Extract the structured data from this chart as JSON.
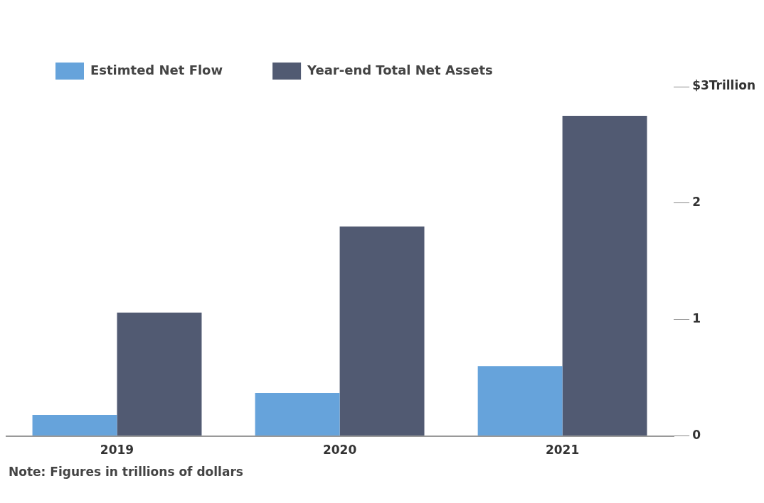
{
  "chart_data": {
    "type": "bar",
    "categories": [
      "2019",
      "2020",
      "2021"
    ],
    "series": [
      {
        "name": "Estimted Net Flow",
        "color": "#66a3db",
        "values": [
          0.18,
          0.37,
          0.6
        ]
      },
      {
        "name": "Year-end Total Net Assets",
        "color": "#515a72",
        "values": [
          1.06,
          1.8,
          2.75
        ]
      }
    ],
    "ylim": [
      0,
      3
    ],
    "yticks": [
      0,
      1,
      2,
      {
        "value": 3,
        "label": "$3Trillion"
      }
    ],
    "grid": false,
    "legend": "top left",
    "annotations": [
      "Note: Figures in trillions of dollars"
    ]
  }
}
